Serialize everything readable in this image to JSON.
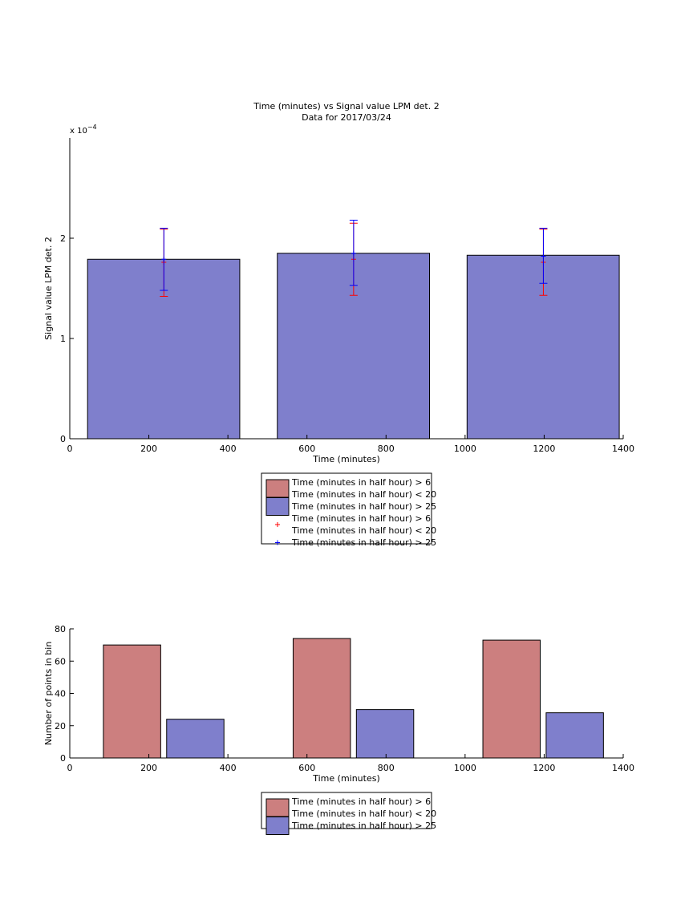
{
  "colors": {
    "red_bar": "#CC7F7F",
    "blue_bar": "#7F7FCC",
    "red_err": "#FF0000",
    "blue_err": "#0000FF",
    "axis": "#000000"
  },
  "chart_data": [
    {
      "type": "bar",
      "title": "Time (minutes) vs Signal value LPM det. 2",
      "subtitle": "Data for 2017/03/24",
      "xlabel": "Time (minutes)",
      "ylabel": "Signal value LPM det. 2",
      "y_exponent": "x 10",
      "y_exponent_power": "−4",
      "xlim": [
        0,
        1400
      ],
      "ylim": [
        0,
        3
      ],
      "x_ticks": [
        0,
        200,
        400,
        600,
        800,
        1000,
        1200,
        1400
      ],
      "y_ticks": [
        0,
        1,
        2
      ],
      "bars": [
        {
          "x_start": 45,
          "x_end": 430,
          "value": 1.79
        },
        {
          "x_start": 525,
          "x_end": 910,
          "value": 1.85
        },
        {
          "x_start": 1005,
          "x_end": 1390,
          "value": 1.83
        }
      ],
      "series": [
        {
          "name_line1": "Time (minutes in half hour) > 6",
          "name_line2": "Time (minutes in half hour) < 20",
          "x": [
            238,
            718,
            1198
          ],
          "values": [
            1.76,
            1.79,
            1.76
          ],
          "upper": [
            2.09,
            2.15,
            2.09
          ],
          "lower": [
            1.42,
            1.43,
            1.43
          ]
        },
        {
          "name": "Time (minutes in half hour) > 25",
          "x": [
            238,
            718,
            1198
          ],
          "values": [
            1.79,
            1.85,
            1.82
          ],
          "upper": [
            2.1,
            2.18,
            2.1
          ],
          "lower": [
            1.48,
            1.53,
            1.55
          ]
        }
      ],
      "legend": {
        "placement": "below",
        "entries": [
          {
            "kind": "bar",
            "series": 0,
            "line1": "Time (minutes in half hour) > 6",
            "line2": "Time (minutes in half hour) < 20"
          },
          {
            "kind": "bar",
            "series": 1,
            "line1": "Time (minutes in half hour) > 25"
          },
          {
            "kind": "marker",
            "series": 0,
            "line1": "Time (minutes in half hour) > 6",
            "line2": "Time (minutes in half hour) < 20"
          },
          {
            "kind": "marker",
            "series": 1,
            "line1": "Time (minutes in half hour) > 25"
          }
        ]
      }
    },
    {
      "type": "bar",
      "xlabel": "Time (minutes)",
      "ylabel": "Number of points in bin",
      "xlim": [
        0,
        1400
      ],
      "ylim": [
        0,
        80
      ],
      "x_ticks": [
        0,
        200,
        400,
        600,
        800,
        1000,
        1200,
        1400
      ],
      "y_ticks": [
        0,
        20,
        40,
        60,
        80
      ],
      "series": [
        {
          "name_line1": "Time (minutes in half hour) > 6",
          "name_line2": "Time (minutes in half hour) < 20",
          "bars": [
            {
              "x_start": 85,
              "x_end": 230,
              "value": 70
            },
            {
              "x_start": 565,
              "x_end": 710,
              "value": 74
            },
            {
              "x_start": 1045,
              "x_end": 1190,
              "value": 73
            }
          ]
        },
        {
          "name": "Time (minutes in half hour) > 25",
          "bars": [
            {
              "x_start": 245,
              "x_end": 390,
              "value": 24
            },
            {
              "x_start": 725,
              "x_end": 870,
              "value": 30
            },
            {
              "x_start": 1205,
              "x_end": 1350,
              "value": 28
            }
          ]
        }
      ],
      "legend": {
        "placement": "below",
        "entries": [
          {
            "kind": "bar",
            "series": 0,
            "line1": "Time (minutes in half hour) > 6",
            "line2": "Time (minutes in half hour) < 20"
          },
          {
            "kind": "bar",
            "series": 1,
            "line1": "Time (minutes in half hour) > 25"
          }
        ]
      }
    }
  ]
}
